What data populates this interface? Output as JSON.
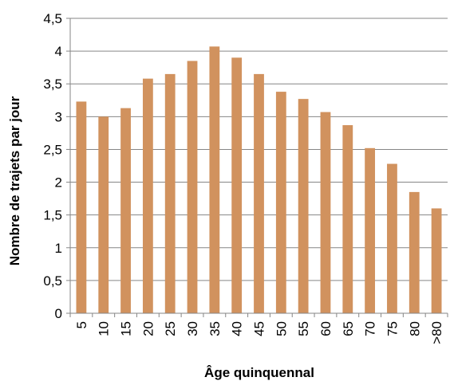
{
  "chart_data": {
    "type": "bar",
    "title": "",
    "xlabel": "Âge quinquennal",
    "ylabel": "Nombre de trajets par jour",
    "ylim": [
      0,
      4.5
    ],
    "y_ticks": [
      "0",
      "0,5",
      "1",
      "1,5",
      "2",
      "2,5",
      "3",
      "3,5",
      "4",
      "4,5"
    ],
    "y_tick_values": [
      0,
      0.5,
      1,
      1.5,
      2,
      2.5,
      3,
      3.5,
      4,
      4.5
    ],
    "grid": true,
    "legend": "none",
    "categories": [
      "5",
      "10",
      "15",
      "20",
      "25",
      "30",
      "35",
      "40",
      "45",
      "50",
      "55",
      "60",
      "65",
      "70",
      "75",
      "80",
      ">80"
    ],
    "values": [
      3.23,
      3.0,
      3.13,
      3.58,
      3.65,
      3.85,
      4.07,
      3.9,
      3.65,
      3.38,
      3.27,
      3.07,
      2.87,
      2.52,
      2.28,
      1.85,
      1.6
    ],
    "colors": {
      "bar": "#D1925E",
      "grid": "#868686",
      "axis": "#868686"
    }
  }
}
